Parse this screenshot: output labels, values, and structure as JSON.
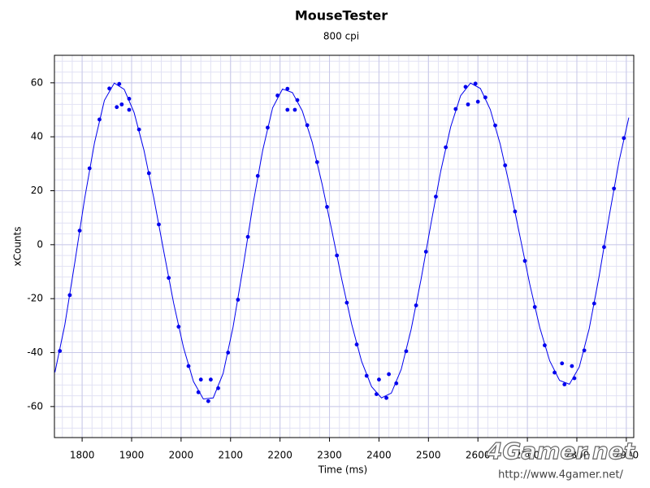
{
  "chart_data": {
    "type": "scatter",
    "title": "MouseTester",
    "subtitle": "800 cpi",
    "x_label": "Time (ms)",
    "y_label": "xCounts",
    "xlim": [
      1744,
      2915
    ],
    "ylim": [
      -71.5,
      70.2
    ],
    "xticks": [
      1800,
      1900,
      2000,
      2100,
      2200,
      2300,
      2400,
      2500,
      2600,
      2700,
      2800,
      2900
    ],
    "yticks": [
      -60,
      -40,
      -20,
      0,
      20,
      40,
      60
    ],
    "grid": true,
    "series": [
      {
        "type": "line",
        "color": "#0000ee",
        "x": [
          1745,
          1765,
          1785,
          1805,
          1825,
          1845,
          1865,
          1885,
          1905,
          1925,
          1945,
          1965,
          1985,
          2005,
          2025,
          2045,
          2065,
          2085,
          2105,
          2125,
          2145,
          2165,
          2185,
          2205,
          2225,
          2245,
          2265,
          2285,
          2305,
          2325,
          2345,
          2365,
          2385,
          2405,
          2425,
          2445,
          2465,
          2485,
          2505,
          2525,
          2545,
          2565,
          2585,
          2605,
          2625,
          2645,
          2665,
          2685,
          2705,
          2725,
          2745,
          2765,
          2785,
          2805,
          2825,
          2845,
          2865,
          2885,
          2905
        ],
        "values": [
          -47.3,
          -29.7,
          -6.8,
          17.0,
          37.8,
          53.5,
          59.9,
          57.6,
          49.0,
          35.0,
          17.2,
          -2.5,
          -21.7,
          -38.2,
          -50.7,
          -57.2,
          -56.8,
          -47.7,
          -30.6,
          -8.7,
          14.6,
          35.0,
          50.7,
          57.7,
          56.4,
          49.6,
          38.0,
          22.5,
          5.0,
          -13.0,
          -29.6,
          -43.3,
          -52.6,
          -56.8,
          -55.0,
          -46.2,
          -31.4,
          -12.9,
          7.7,
          27.4,
          43.7,
          55.2,
          59.9,
          57.9,
          50.1,
          37.3,
          21.0,
          3.1,
          -14.8,
          -30.7,
          -43.0,
          -50.3,
          -51.7,
          -45.3,
          -31.1,
          -11.7,
          10.2,
          30.7,
          47.1
        ]
      },
      {
        "type": "scatter",
        "color": "#0000ee",
        "x": [
          1755,
          1775,
          1795,
          1815,
          1835,
          1855,
          1875,
          1895,
          1915,
          1935,
          1955,
          1975,
          1995,
          2015,
          2035,
          2055,
          2075,
          2095,
          2115,
          2135,
          2155,
          2175,
          2195,
          2215,
          2235,
          2255,
          2275,
          2295,
          2315,
          2335,
          2355,
          2375,
          2395,
          2415,
          2435,
          2455,
          2475,
          2495,
          2515,
          2535,
          2555,
          2575,
          2595,
          2615,
          2635,
          2655,
          2675,
          2695,
          2715,
          2735,
          2755,
          2775,
          2795,
          2815,
          2835,
          2855,
          2875,
          2895,
          1870,
          1880,
          1895,
          2215,
          2230,
          2580,
          2600,
          2040,
          2060,
          2400,
          2420,
          2770,
          2790
        ],
        "values": [
          -39.4,
          -18.7,
          5.2,
          28.3,
          46.4,
          57.9,
          59.6,
          54.1,
          42.7,
          26.5,
          7.5,
          -12.3,
          -30.4,
          -45.0,
          -54.7,
          -58,
          -53.2,
          -40.0,
          -20.4,
          2.9,
          25.5,
          43.4,
          55.3,
          57.8,
          53.6,
          44.3,
          30.6,
          14.0,
          -4.0,
          -21.5,
          -37.0,
          -48.6,
          -55.4,
          -56.8,
          -51.4,
          -39.5,
          -22.5,
          -2.6,
          17.8,
          36.1,
          50.3,
          58.5,
          59.7,
          54.6,
          44.2,
          29.4,
          12.3,
          -6.0,
          -23.1,
          -37.3,
          -47.4,
          -51.8,
          -49.5,
          -39.2,
          -21.8,
          -0.9,
          20.8,
          39.5,
          51,
          52,
          50,
          50,
          50,
          52,
          53,
          -50,
          -50,
          -50,
          -48,
          -44,
          -45
        ]
      }
    ],
    "watermark": "4Gamer.net",
    "watermark_url": "http://www.4gamer.net/"
  }
}
